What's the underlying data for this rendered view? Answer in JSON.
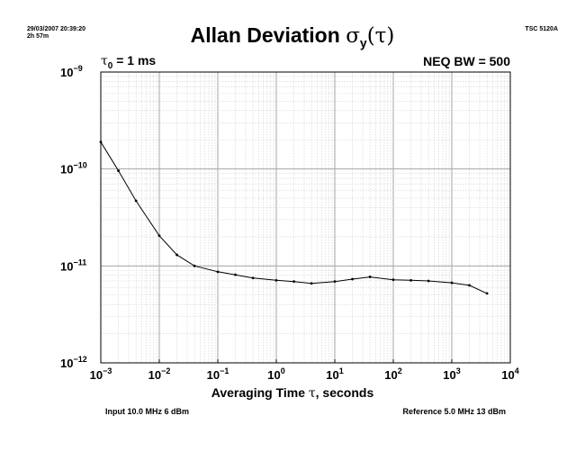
{
  "header": {
    "datetime": "29/03/2007 20:39:20",
    "duration": "2h 57m",
    "instrument": "TSC 5120A"
  },
  "chart_data": {
    "type": "line",
    "title_text": "Allan Deviation ",
    "title_symbol": "σ",
    "title_sub": "y",
    "title_arg": "(τ)",
    "tau0_symbol": "τ",
    "tau0_sub": "0",
    "tau0_value": " = 1 ms",
    "neq_bw": "NEQ BW = 500",
    "xlabel_pre": "Averaging Time ",
    "xlabel_sym": "τ",
    "xlabel_post": ", seconds",
    "x_scale": "log",
    "y_scale": "log",
    "xlim": [
      0.001,
      10000
    ],
    "ylim": [
      1e-12,
      1e-09
    ],
    "x_tick_exponents": [
      "−3",
      "−2",
      "−1",
      "0",
      "1",
      "2",
      "3",
      "4"
    ],
    "y_tick_exponents": [
      "−9",
      "−10",
      "−11",
      "−12"
    ],
    "grid": true,
    "series": [
      {
        "x": [
          0.001,
          0.002,
          0.004,
          0.01,
          0.02,
          0.04,
          0.1,
          0.2,
          0.4,
          1,
          2,
          4,
          10,
          20,
          40,
          100,
          200,
          400,
          1000,
          2000,
          4000
        ],
        "y": [
          1.9e-10,
          9.6e-11,
          4.7e-11,
          2.05e-11,
          1.3e-11,
          1e-11,
          8.7e-12,
          8.1e-12,
          7.5e-12,
          7.1e-12,
          6.9e-12,
          6.6e-12,
          6.9e-12,
          7.3e-12,
          7.7e-12,
          7.2e-12,
          7.1e-12,
          7e-12,
          6.7e-12,
          6.3e-12,
          5.2e-12
        ]
      }
    ]
  },
  "footer": {
    "input": "Input 10.0 MHz 6 dBm",
    "reference": "Reference 5.0 MHz 13 dBm"
  }
}
